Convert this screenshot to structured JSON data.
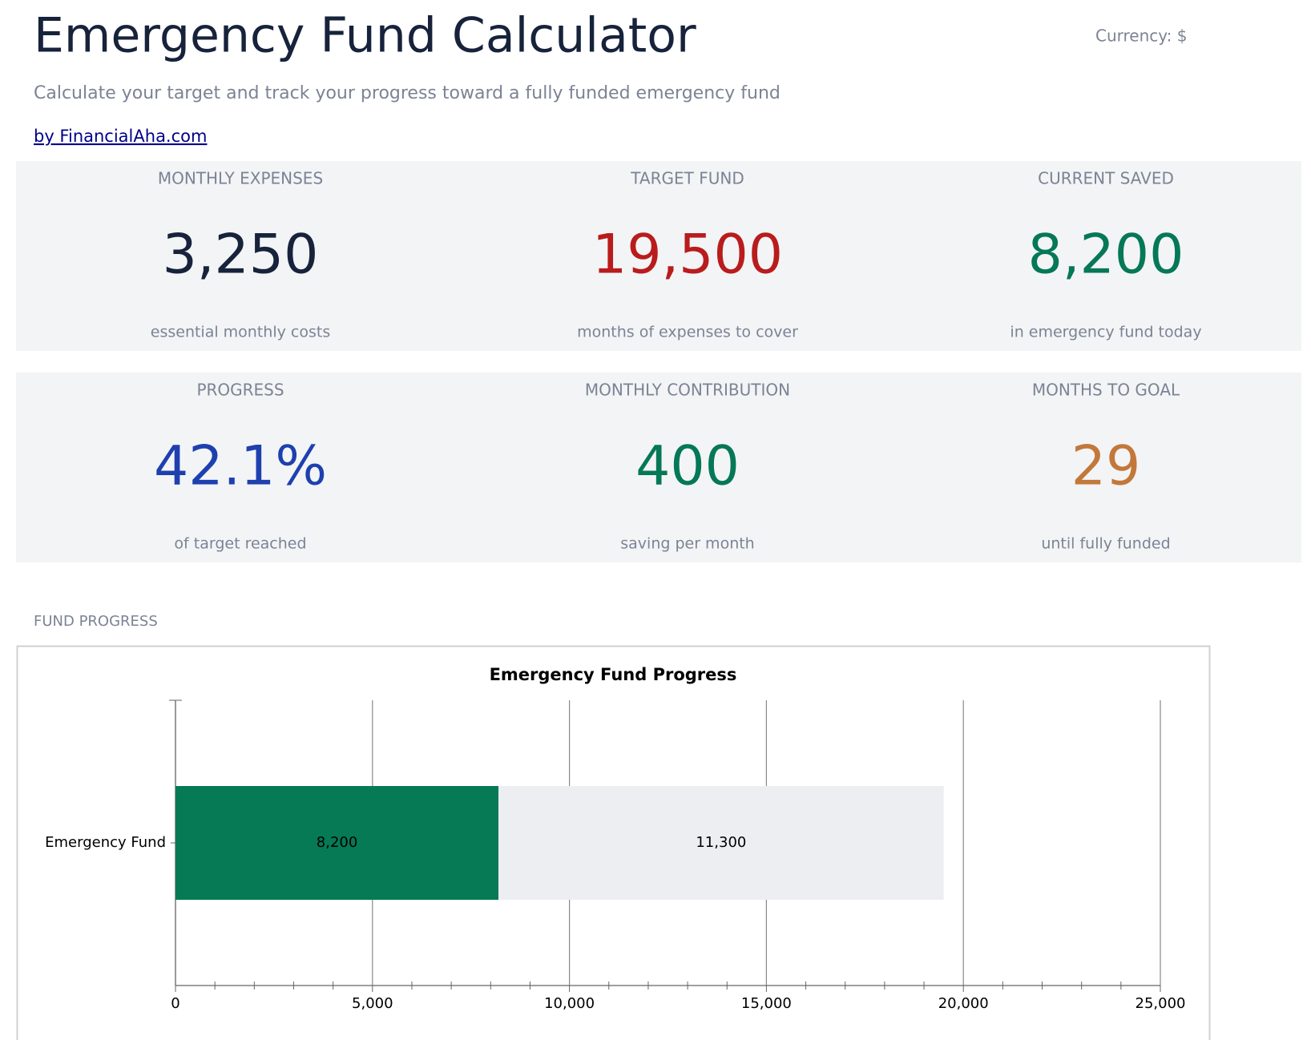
{
  "header": {
    "title": "Emergency Fund Calculator",
    "currency": "Currency: $",
    "subtitle": "Calculate your target and track your progress toward a fully funded emergency fund",
    "link": "by FinancialAha.com"
  },
  "cards": [
    {
      "label": "MONTHLY EXPENSES",
      "value": "3,250",
      "note": "essential monthly costs",
      "color": "#17223b"
    },
    {
      "label": "TARGET FUND",
      "value": "19,500",
      "note": "months of expenses to cover",
      "color": "#b91c1c"
    },
    {
      "label": "CURRENT SAVED",
      "value": "8,200",
      "note": "in emergency fund today",
      "color": "#047857"
    },
    {
      "label": "PROGRESS",
      "value": "42.1%",
      "note": "of target reached",
      "color": "#1e40af"
    },
    {
      "label": "MONTHLY CONTRIBUTION",
      "value": "400",
      "note": "saving per month",
      "color": "#047857"
    },
    {
      "label": "MONTHS TO GOAL",
      "value": "29",
      "note": "until fully funded",
      "color": "#c2783a"
    }
  ],
  "section_label": "FUND PROGRESS",
  "chart_data": {
    "type": "bar",
    "orientation": "horizontal",
    "stacked": true,
    "title": "Emergency Fund Progress",
    "categories": [
      "Emergency Fund"
    ],
    "series": [
      {
        "color": "#057a55",
        "values": [
          8200
        ],
        "value_labels": [
          "8,200"
        ]
      },
      {
        "color": "#edeef1",
        "values": [
          11300
        ],
        "value_labels": [
          "11,300"
        ]
      }
    ],
    "xlim": [
      0,
      25000
    ],
    "xticks": [
      0,
      {
        "value": 5000,
        "label": "5,000"
      },
      {
        "value": 10000,
        "label": "10,000"
      },
      {
        "value": 15000,
        "label": "15,000"
      },
      {
        "value": 20000,
        "label": "20,000"
      },
      {
        "value": 25000,
        "label": "25,000"
      }
    ],
    "xminorticks": [
      1000,
      2000,
      3000,
      4000,
      6000,
      7000,
      8000,
      9000,
      11000,
      12000,
      13000,
      14000,
      16000,
      17000,
      18000,
      19000,
      21000,
      22000,
      23000,
      24000
    ],
    "grid": true
  }
}
